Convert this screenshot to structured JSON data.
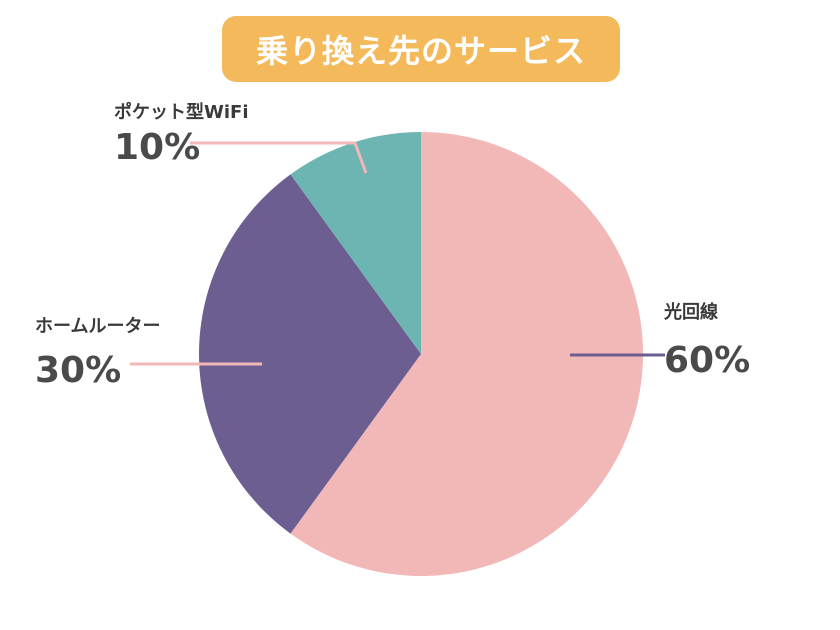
{
  "chart_data": {
    "type": "pie",
    "title": "乗り換え先のサービス",
    "slices": [
      {
        "label": "光回線",
        "value": 60,
        "value_label": "60%",
        "color": "#f2b8b8"
      },
      {
        "label": "ホームルーター",
        "value": 30,
        "value_label": "30%",
        "color": "#6c5e91"
      },
      {
        "label": "ポケット型WiFi",
        "value": 10,
        "value_label": "10%",
        "color": "#6cb5b2"
      }
    ],
    "start": "12 o'clock",
    "direction": "clockwise",
    "legend": "none",
    "leader_line_colors": [
      "#6c5e91",
      "#f2b8b8",
      "#f2b8b8"
    ],
    "title_badge_color": "#f4b95a"
  }
}
